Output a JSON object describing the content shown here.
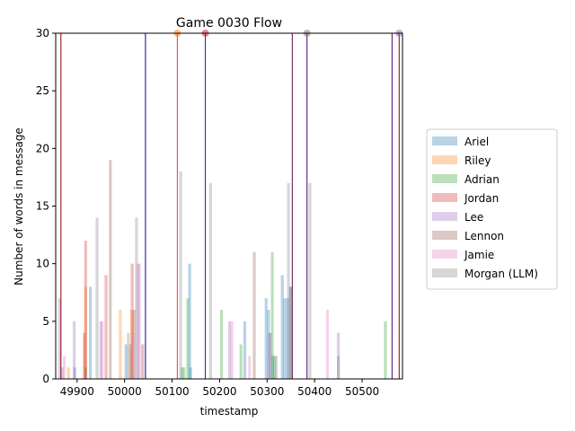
{
  "chart_data": {
    "type": "bar",
    "title": "Game 0030 Flow",
    "xlabel": "timestamp",
    "ylabel": "Number of words in message",
    "xlim": [
      49855,
      50585
    ],
    "ylim": [
      0,
      30
    ],
    "xticks": [
      49900,
      50000,
      50100,
      50200,
      50300,
      50400,
      50500
    ],
    "yticks": [
      0,
      5,
      10,
      15,
      20,
      25,
      30
    ],
    "legend_position": "right",
    "series": [
      {
        "name": "Ariel",
        "color": "#1f77b4",
        "points": [
          [
            49895,
            1
          ],
          [
            49928,
            8
          ],
          [
            50003,
            3
          ],
          [
            50137,
            10
          ],
          [
            50139,
            1
          ],
          [
            50253,
            5
          ],
          [
            50298,
            7
          ],
          [
            50303,
            6
          ],
          [
            50312,
            2
          ],
          [
            50332,
            9
          ],
          [
            50337,
            7
          ],
          [
            50343,
            7
          ],
          [
            50349,
            8
          ]
        ]
      },
      {
        "name": "Riley",
        "color": "#ff7f0e",
        "points": [
          [
            49882,
            1
          ],
          [
            49918,
            8
          ],
          [
            49991,
            6
          ],
          [
            50015,
            6
          ]
        ]
      },
      {
        "name": "Adrian",
        "color": "#2ca02c",
        "points": [
          [
            49918,
            1
          ],
          [
            50121,
            1
          ],
          [
            50125,
            1
          ],
          [
            50133,
            7
          ],
          [
            50204,
            6
          ],
          [
            50245,
            3
          ],
          [
            50311,
            11
          ],
          [
            50316,
            2
          ],
          [
            50549,
            5
          ]
        ]
      },
      {
        "name": "Jordan",
        "color": "#d62728",
        "points": [
          [
            49915,
            4
          ],
          [
            49918,
            12
          ],
          [
            49961,
            9
          ],
          [
            50016,
            10
          ],
          [
            50038,
            3
          ]
        ]
      },
      {
        "name": "Lee",
        "color": "#9467bd",
        "points": [
          [
            49863,
            7
          ],
          [
            49869,
            1
          ],
          [
            49894,
            5
          ],
          [
            49950,
            5
          ],
          [
            50031,
            10
          ],
          [
            50221,
            5
          ],
          [
            50305,
            4
          ],
          [
            50450,
            4
          ]
        ]
      },
      {
        "name": "Lennon",
        "color": "#8c564b",
        "points": [
          [
            49970,
            19
          ],
          [
            50012,
            3
          ],
          [
            50020,
            6
          ],
          [
            50273,
            11
          ],
          [
            50350,
            8
          ]
        ]
      },
      {
        "name": "Jamie",
        "color": "#e377c2",
        "points": [
          [
            49873,
            2
          ],
          [
            49953,
            5
          ],
          [
            50017,
            4
          ],
          [
            50028,
            10
          ],
          [
            50226,
            5
          ],
          [
            50263,
            2
          ],
          [
            50427,
            6
          ]
        ]
      },
      {
        "name": "Morgan (LLM)",
        "color": "#7f7f7f",
        "points": [
          [
            49942,
            14
          ],
          [
            50008,
            4
          ],
          [
            50025,
            14
          ],
          [
            50118,
            18
          ],
          [
            50181,
            17
          ],
          [
            50307,
            4
          ],
          [
            50319,
            2
          ],
          [
            50345,
            17
          ],
          [
            50390,
            17
          ],
          [
            50450,
            2
          ]
        ]
      }
    ],
    "vlines": [
      {
        "x": 49866,
        "color": "#8b0000"
      },
      {
        "x": 50044,
        "color": "#00008b"
      },
      {
        "x": 50111,
        "color": "#ff3030"
      },
      {
        "x": 50170,
        "color": "#1a1a9a"
      },
      {
        "x": 50353,
        "color": "#5a0a4a"
      },
      {
        "x": 50384,
        "color": "#4b0082"
      },
      {
        "x": 50563,
        "color": "#4b0082"
      },
      {
        "x": 50578,
        "color": "#8b0000"
      }
    ],
    "top_markers": [
      {
        "x": 50111,
        "color": "#ff7f0e"
      },
      {
        "x": 50170,
        "color": "#d62728"
      },
      {
        "x": 50384,
        "color": "#7f7f7f"
      },
      {
        "x": 50578,
        "color": "#9467bd"
      }
    ]
  }
}
